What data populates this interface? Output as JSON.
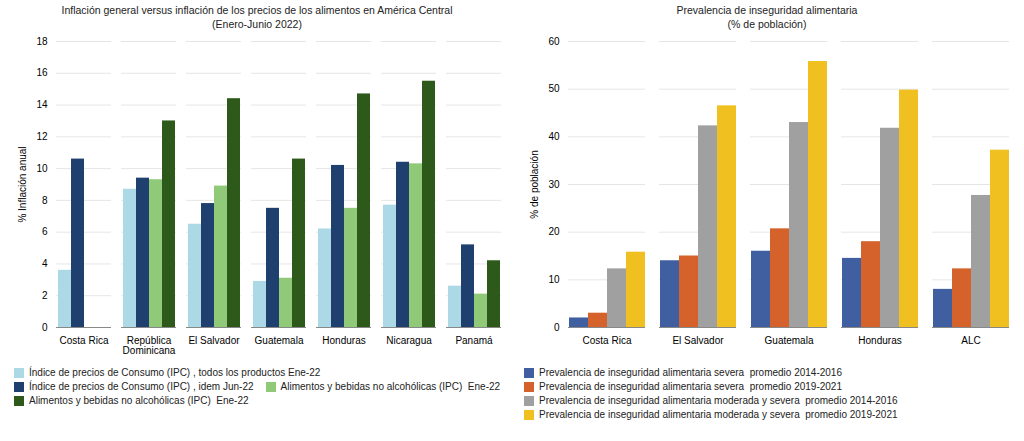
{
  "chart_data": [
    {
      "type": "bar",
      "title": "Inflación general versus inflación de los precios de los alimentos en América Central\n(Enero-Junio 2022)",
      "y_label": "% Inflación anual",
      "categories": [
        "Costa Rica",
        "República\nDominicana",
        "El Salvador",
        "Guatemala",
        "Honduras",
        "Nicaragua",
        "Panamá"
      ],
      "series": [
        {
          "name": "Índice de precios de Consumo (IPC) , todos los productos Ene-22",
          "color": "#add8e6",
          "values": [
            3.6,
            8.7,
            6.5,
            2.9,
            6.2,
            7.7,
            2.6
          ]
        },
        {
          "name": "Índice de precios de Consumo (IPC) , idem Jun-22",
          "color": "#1f3f6e",
          "values": [
            10.6,
            9.4,
            7.8,
            7.5,
            10.2,
            10.4,
            5.2
          ]
        },
        {
          "name": "Alimentos y bebidas no alcohólicas (IPC)  Ene-22",
          "color": "#90c978",
          "values": [
            0,
            9.3,
            8.9,
            3.1,
            7.5,
            10.3,
            2.1
          ]
        },
        {
          "name": "Alimentos y bebidas no alcohólicas (IPC)  Ene-22",
          "color": "#2d5a1b",
          "values": [
            0,
            13.0,
            14.4,
            10.6,
            14.7,
            15.5,
            4.2
          ]
        }
      ],
      "ylim": [
        0,
        18
      ],
      "yticks": [
        0,
        2,
        4,
        6,
        8,
        10,
        12,
        14,
        16,
        18
      ],
      "grid": true,
      "legend": "bottom"
    },
    {
      "type": "bar",
      "title": "Prevalencia de inseguridad alimentaria\n(% de población)",
      "y_label": "% de población",
      "categories": [
        "Costa Rica",
        "El Salvador",
        "Guatemala",
        "Honduras",
        "ALC"
      ],
      "series": [
        {
          "name": "Prevalencia de inseguridad alimentaria severa  promedio 2014-2016",
          "color": "#3f5fa0",
          "values": [
            2.0,
            14.0,
            16.0,
            14.5,
            8.0
          ]
        },
        {
          "name": "Prevalencia de inseguridad alimentaria severa  promedio 2019-2021",
          "color": "#d4622a",
          "values": [
            3.0,
            15.0,
            20.7,
            18.0,
            12.3
          ]
        },
        {
          "name": "Prevalencia de inseguridad alimentaria moderada y severa  promedio 2014-2016",
          "color": "#a0a0a0",
          "values": [
            12.3,
            42.3,
            43.0,
            41.8,
            27.7
          ]
        },
        {
          "name": "Prevalencia de inseguridad alimentaria moderada y severa  promedio 2019-2021",
          "color": "#f0c020",
          "values": [
            15.8,
            46.5,
            55.8,
            49.8,
            37.2
          ]
        }
      ],
      "ylim": [
        0,
        60
      ],
      "yticks": [
        0,
        10,
        20,
        30,
        40,
        50,
        60
      ],
      "grid": true,
      "legend": "bottom"
    }
  ]
}
